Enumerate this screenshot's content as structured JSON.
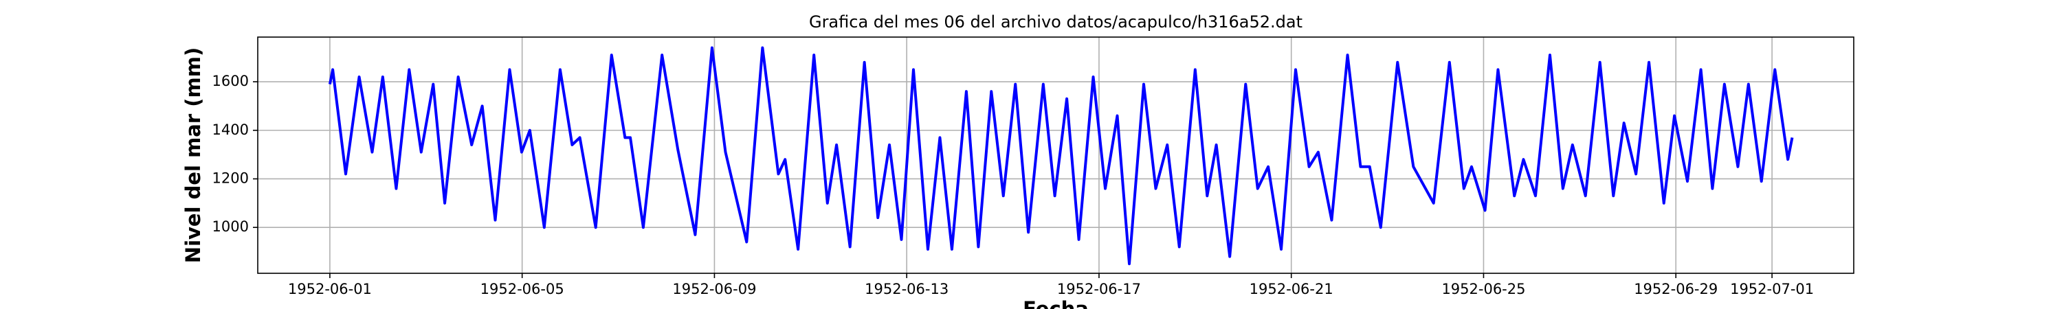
{
  "chart_data": {
    "type": "line",
    "title": "Grafica del mes 06 del archivo datos/acapulco/h316a52.dat",
    "x_label": "Fecha",
    "y_label": "Nivel del mar (mm)",
    "x": [
      0,
      0.06,
      0.33,
      0.61,
      0.88,
      1.1,
      1.38,
      1.65,
      1.9,
      2.15,
      2.39,
      2.67,
      2.95,
      3.17,
      3.44,
      3.74,
      3.99,
      4.16,
      4.46,
      4.79,
      5.04,
      5.2,
      5.53,
      5.86,
      6.14,
      6.25,
      6.52,
      6.91,
      7.24,
      7.6,
      7.95,
      8.23,
      8.67,
      9.0,
      9.33,
      9.47,
      9.74,
      10.07,
      10.35,
      10.54,
      10.82,
      11.12,
      11.4,
      11.64,
      11.89,
      12.14,
      12.44,
      12.69,
      12.94,
      13.24,
      13.49,
      13.76,
      14.01,
      14.26,
      14.53,
      14.84,
      15.08,
      15.33,
      15.58,
      15.88,
      16.13,
      16.38,
      16.63,
      16.93,
      17.18,
      17.42,
      17.67,
      18.0,
      18.25,
      18.44,
      18.72,
      19.05,
      19.3,
      19.52,
      19.79,
      20.09,
      20.37,
      20.56,
      20.84,
      21.17,
      21.44,
      21.63,
      21.86,
      22.21,
      22.54,
      22.96,
      23.29,
      23.59,
      23.75,
      24.03,
      24.3,
      24.64,
      24.83,
      25.08,
      25.38,
      25.65,
      25.85,
      26.12,
      26.42,
      26.7,
      26.92,
      27.17,
      27.44,
      27.75,
      27.97,
      28.24,
      28.52,
      28.76,
      29.01,
      29.29,
      29.51,
      29.78,
      30.06,
      30.33,
      30.42
    ],
    "series": [
      {
        "color": "#0000ff",
        "values": [
          1590,
          1650,
          1220,
          1620,
          1310,
          1620,
          1160,
          1650,
          1310,
          1590,
          1100,
          1620,
          1340,
          1500,
          1030,
          1650,
          1310,
          1400,
          1000,
          1650,
          1340,
          1370,
          1000,
          1710,
          1370,
          1370,
          1000,
          1710,
          1320,
          970,
          1740,
          1310,
          940,
          1740,
          1220,
          1280,
          910,
          1710,
          1100,
          1340,
          920,
          1680,
          1040,
          1340,
          950,
          1650,
          910,
          1370,
          910,
          1560,
          920,
          1560,
          1130,
          1590,
          980,
          1590,
          1130,
          1530,
          950,
          1620,
          1160,
          1460,
          850,
          1590,
          1160,
          1340,
          920,
          1650,
          1130,
          1340,
          880,
          1590,
          1160,
          1250,
          910,
          1650,
          1250,
          1310,
          1030,
          1710,
          1250,
          1250,
          1000,
          1680,
          1250,
          1100,
          1680,
          1160,
          1250,
          1070,
          1650,
          1130,
          1280,
          1130,
          1710,
          1160,
          1340,
          1130,
          1680,
          1130,
          1430,
          1220,
          1680,
          1100,
          1460,
          1190,
          1650,
          1160,
          1590,
          1250,
          1590,
          1190,
          1650,
          1280,
          1370
        ]
      }
    ],
    "xlim": [
      -1.5,
      31.7
    ],
    "xticks": [
      {
        "value": 0,
        "label": "1952-06-01"
      },
      {
        "value": 4,
        "label": "1952-06-05"
      },
      {
        "value": 8,
        "label": "1952-06-09"
      },
      {
        "value": 12,
        "label": "1952-06-13"
      },
      {
        "value": 16,
        "label": "1952-06-17"
      },
      {
        "value": 20,
        "label": "1952-06-21"
      },
      {
        "value": 24,
        "label": "1952-06-25"
      },
      {
        "value": 28,
        "label": "1952-06-29"
      },
      {
        "value": 30,
        "label": "1952-07-01"
      }
    ],
    "ylim": [
      811,
      1784
    ],
    "yticks": [
      1000,
      1200,
      1400,
      1600
    ],
    "grid": true
  }
}
